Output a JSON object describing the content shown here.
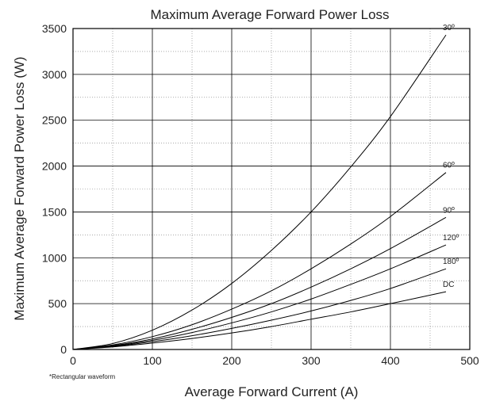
{
  "chart_data": {
    "type": "line",
    "title": "Maximum Average Forward Power Loss",
    "xlabel": "Average Forward Current (A)",
    "ylabel": "Maximum Average Forward Power Loss (W)",
    "xlim": [
      0,
      500
    ],
    "ylim": [
      0,
      3500
    ],
    "x_ticks": [
      0,
      100,
      200,
      300,
      400,
      500
    ],
    "y_ticks": [
      0,
      500,
      1000,
      1500,
      2000,
      2500,
      3000,
      3500
    ],
    "grid": true,
    "note": "*Rectangular waveform",
    "series": [
      {
        "name": "30º",
        "x": [
          0,
          50,
          100,
          150,
          200,
          250,
          300,
          350,
          400,
          470
        ],
        "values": [
          0,
          65,
          210,
          430,
          720,
          1080,
          1500,
          1990,
          2540,
          3430
        ]
      },
      {
        "name": "60º",
        "x": [
          0,
          50,
          100,
          150,
          200,
          250,
          300,
          350,
          400,
          470
        ],
        "values": [
          0,
          50,
          140,
          270,
          440,
          640,
          880,
          1150,
          1450,
          1930
        ]
      },
      {
        "name": "90º",
        "x": [
          0,
          50,
          100,
          150,
          200,
          250,
          300,
          350,
          400,
          470
        ],
        "values": [
          0,
          43,
          115,
          220,
          350,
          500,
          680,
          880,
          1100,
          1440
        ]
      },
      {
        "name": "120º",
        "x": [
          0,
          50,
          100,
          150,
          200,
          250,
          300,
          350,
          400,
          470
        ],
        "values": [
          0,
          38,
          100,
          185,
          290,
          410,
          550,
          710,
          880,
          1140
        ]
      },
      {
        "name": "180º",
        "x": [
          0,
          50,
          100,
          150,
          200,
          250,
          300,
          350,
          400,
          470
        ],
        "values": [
          0,
          33,
          85,
          150,
          230,
          320,
          420,
          535,
          665,
          880
        ]
      },
      {
        "name": "DC",
        "x": [
          0,
          50,
          100,
          150,
          200,
          250,
          300,
          350,
          400,
          470
        ],
        "values": [
          0,
          28,
          70,
          120,
          180,
          250,
          330,
          410,
          500,
          630
        ]
      }
    ]
  }
}
